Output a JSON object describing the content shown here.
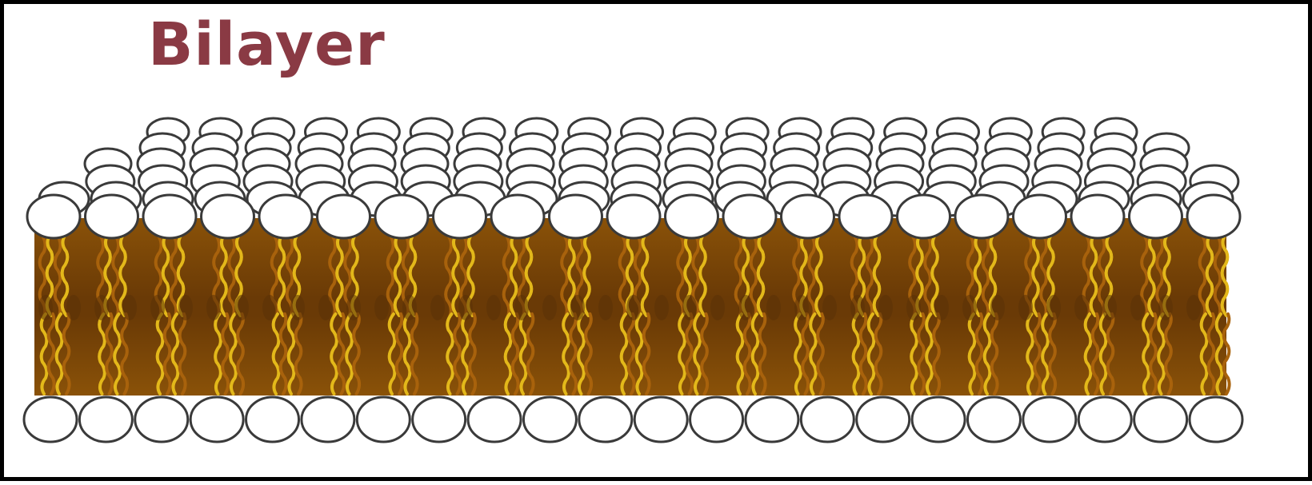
{
  "title": "Bilayer",
  "colors": {
    "title": "#8a3a44",
    "head_fill": "#ffffff",
    "head_stroke": "#3a3a3a",
    "tail_dark": "#5a3208",
    "tail_mid": "#a8620c",
    "tail_light": "#e3b81a",
    "frame": "#000000"
  },
  "icons": {
    "head": "phospholipid-head-icon",
    "tail": "fatty-acid-tail-icon"
  }
}
